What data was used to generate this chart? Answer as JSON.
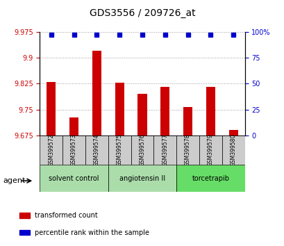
{
  "title": "GDS3556 / 209726_at",
  "samples": [
    "GSM399572",
    "GSM399573",
    "GSM399574",
    "GSM399575",
    "GSM399576",
    "GSM399577",
    "GSM399578",
    "GSM399579",
    "GSM399580"
  ],
  "transformed_counts": [
    9.83,
    9.727,
    9.92,
    9.828,
    9.795,
    9.815,
    9.758,
    9.815,
    9.69
  ],
  "percentile_ranks": [
    97,
    97,
    97,
    97,
    97,
    97,
    97,
    97,
    97
  ],
  "ylim_left": [
    9.675,
    9.975
  ],
  "yticks_left": [
    9.675,
    9.75,
    9.825,
    9.9,
    9.975
  ],
  "yticks_right": [
    0,
    25,
    50,
    75,
    100
  ],
  "ylim_right": [
    0,
    100
  ],
  "bar_color": "#cc0000",
  "dot_color": "#0000cc",
  "groups": [
    {
      "label": "solvent control",
      "start": 0,
      "end": 3,
      "color": "#aaddaa"
    },
    {
      "label": "angiotensin II",
      "start": 3,
      "end": 6,
      "color": "#aaddaa"
    },
    {
      "label": "torcetrapib",
      "start": 6,
      "end": 9,
      "color": "#66dd66"
    }
  ],
  "agent_label": "agent",
  "legend_items": [
    {
      "label": "transformed count",
      "color": "#cc0000"
    },
    {
      "label": "percentile rank within the sample",
      "color": "#0000cc"
    }
  ],
  "grid_color": "#000000",
  "grid_alpha": 0.4,
  "background_color": "#ffffff",
  "plot_bg_color": "#ffffff",
  "tick_label_color_left": "#cc0000",
  "tick_label_color_right": "#0000cc"
}
